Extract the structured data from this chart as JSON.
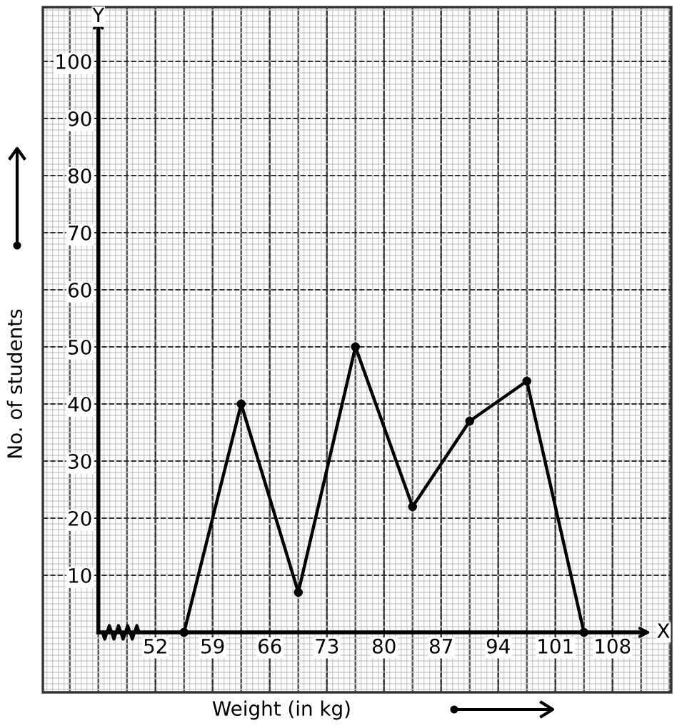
{
  "chart_data": {
    "type": "line",
    "xlabel": "Weight (in kg)",
    "ylabel": "No. of students",
    "annotations": [
      "X",
      "Y"
    ],
    "x": [
      55.5,
      62.5,
      69.5,
      76.5,
      83.5,
      90.5,
      97.5,
      104.5
    ],
    "series": [
      {
        "color": "#000000",
        "values": [
          0,
          40,
          7,
          50,
          22,
          37,
          44,
          0
        ]
      }
    ],
    "xlim": [
      38.2,
      115.2
    ],
    "ylim": [
      -10.5,
      109.5
    ],
    "xticks": [
      52,
      59,
      66,
      73,
      80,
      87,
      94,
      101,
      108
    ],
    "yticks": [
      10,
      20,
      30,
      40,
      50,
      60,
      70,
      80,
      90,
      100
    ],
    "grid": true,
    "marker": "circle",
    "line_style": "solid",
    "legend": false
  }
}
